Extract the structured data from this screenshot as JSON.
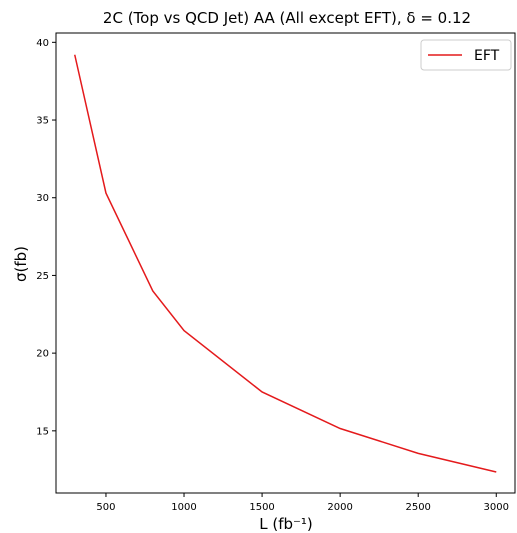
{
  "chart_data": {
    "type": "line",
    "title": "2C (Top vs QCD Jet) AA (All except EFT), δ = 0.12",
    "xlabel": "L (fb⁻¹)",
    "ylabel": "σ(fb)",
    "xlim": [
      180,
      3120
    ],
    "ylim": [
      11.0,
      40.6
    ],
    "x_ticks": [
      500,
      1000,
      1500,
      2000,
      2500,
      3000
    ],
    "y_ticks": [
      15,
      20,
      25,
      30,
      35,
      40
    ],
    "grid": false,
    "legend_position": "top-right",
    "series": [
      {
        "name": "EFT",
        "color": "#e41a1c",
        "x": [
          300,
          500,
          800,
          1000,
          1500,
          2000,
          2500,
          3000
        ],
        "y": [
          39.2,
          30.3,
          24.0,
          21.45,
          17.5,
          15.15,
          13.55,
          12.35
        ]
      }
    ]
  }
}
